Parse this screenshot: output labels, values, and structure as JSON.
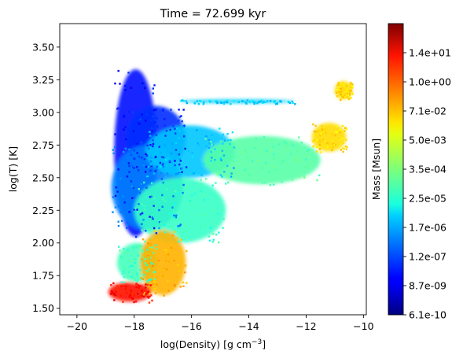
{
  "chart_data": {
    "type": "heatmap",
    "title": "Time = 72.699 kyr",
    "xlabel_main": "log(Density) [g cm",
    "xlabel_sup": "−3",
    "xlabel_end": "]",
    "ylabel": "log(T) [K]",
    "xlim": [
      -20.6,
      -9.9
    ],
    "ylim": [
      1.45,
      3.68
    ],
    "xticks": [
      {
        "value": -20,
        "label": "−20"
      },
      {
        "value": -18,
        "label": "−18"
      },
      {
        "value": -16,
        "label": "−16"
      },
      {
        "value": -14,
        "label": "−14"
      },
      {
        "value": -12,
        "label": "−12"
      },
      {
        "value": -10,
        "label": "−10"
      }
    ],
    "yticks": [
      {
        "value": 1.5,
        "label": "1.50"
      },
      {
        "value": 1.75,
        "label": "1.75"
      },
      {
        "value": 2.0,
        "label": "2.00"
      },
      {
        "value": 2.25,
        "label": "2.25"
      },
      {
        "value": 2.5,
        "label": "2.50"
      },
      {
        "value": 2.75,
        "label": "2.75"
      },
      {
        "value": 3.0,
        "label": "3.00"
      },
      {
        "value": 3.25,
        "label": "3.25"
      },
      {
        "value": 3.5,
        "label": "3.50"
      }
    ],
    "colorbar": {
      "label": "Mass [Msun]",
      "colormap": "jet",
      "scale": "log",
      "ticks": [
        {
          "frac": 0.0,
          "label": "6.1e-10"
        },
        {
          "frac": 0.1,
          "label": "8.7e-09"
        },
        {
          "frac": 0.2,
          "label": "1.2e-07"
        },
        {
          "frac": 0.3,
          "label": "1.7e-06"
        },
        {
          "frac": 0.4,
          "label": "2.5e-05"
        },
        {
          "frac": 0.5,
          "label": "3.5e-04"
        },
        {
          "frac": 0.6,
          "label": "5.0e-03"
        },
        {
          "frac": 0.7,
          "label": "7.1e-02"
        },
        {
          "frac": 0.8,
          "label": "1.0e+00"
        },
        {
          "frac": 0.9,
          "label": "1.4e+01"
        }
      ]
    },
    "regions": [
      {
        "x": [
          -18.7,
          -17.2
        ],
        "y": [
          2.05,
          3.33
        ],
        "level": 0.14
      },
      {
        "x": [
          -18.3,
          -16.2
        ],
        "y": [
          2.55,
          3.05
        ],
        "level": 0.17
      },
      {
        "x": [
          -16.4,
          -12.4
        ],
        "y": [
          3.07,
          3.1
        ],
        "level": 0.33
      },
      {
        "x": [
          -18.8,
          -16.3
        ],
        "y": [
          2.1,
          2.75
        ],
        "level": 0.25
      },
      {
        "x": [
          -17.6,
          -14.5
        ],
        "y": [
          2.5,
          2.9
        ],
        "level": 0.32
      },
      {
        "x": [
          -15.6,
          -11.5
        ],
        "y": [
          2.45,
          2.82
        ],
        "level": 0.46
      },
      {
        "x": [
          -11.8,
          -10.6
        ],
        "y": [
          2.7,
          2.92
        ],
        "level": 0.66
      },
      {
        "x": [
          -11.0,
          -10.4
        ],
        "y": [
          3.1,
          3.24
        ],
        "level": 0.66
      },
      {
        "x": [
          -18.0,
          -14.8
        ],
        "y": [
          2.0,
          2.5
        ],
        "level": 0.43
      },
      {
        "x": [
          -18.6,
          -17.2
        ],
        "y": [
          1.7,
          2.0
        ],
        "level": 0.44
      },
      {
        "x": [
          -17.8,
          -16.2
        ],
        "y": [
          1.6,
          2.1
        ],
        "level": 0.7
      },
      {
        "x": [
          -18.9,
          -17.4
        ],
        "y": [
          1.55,
          1.7
        ],
        "level": 0.86
      }
    ]
  }
}
